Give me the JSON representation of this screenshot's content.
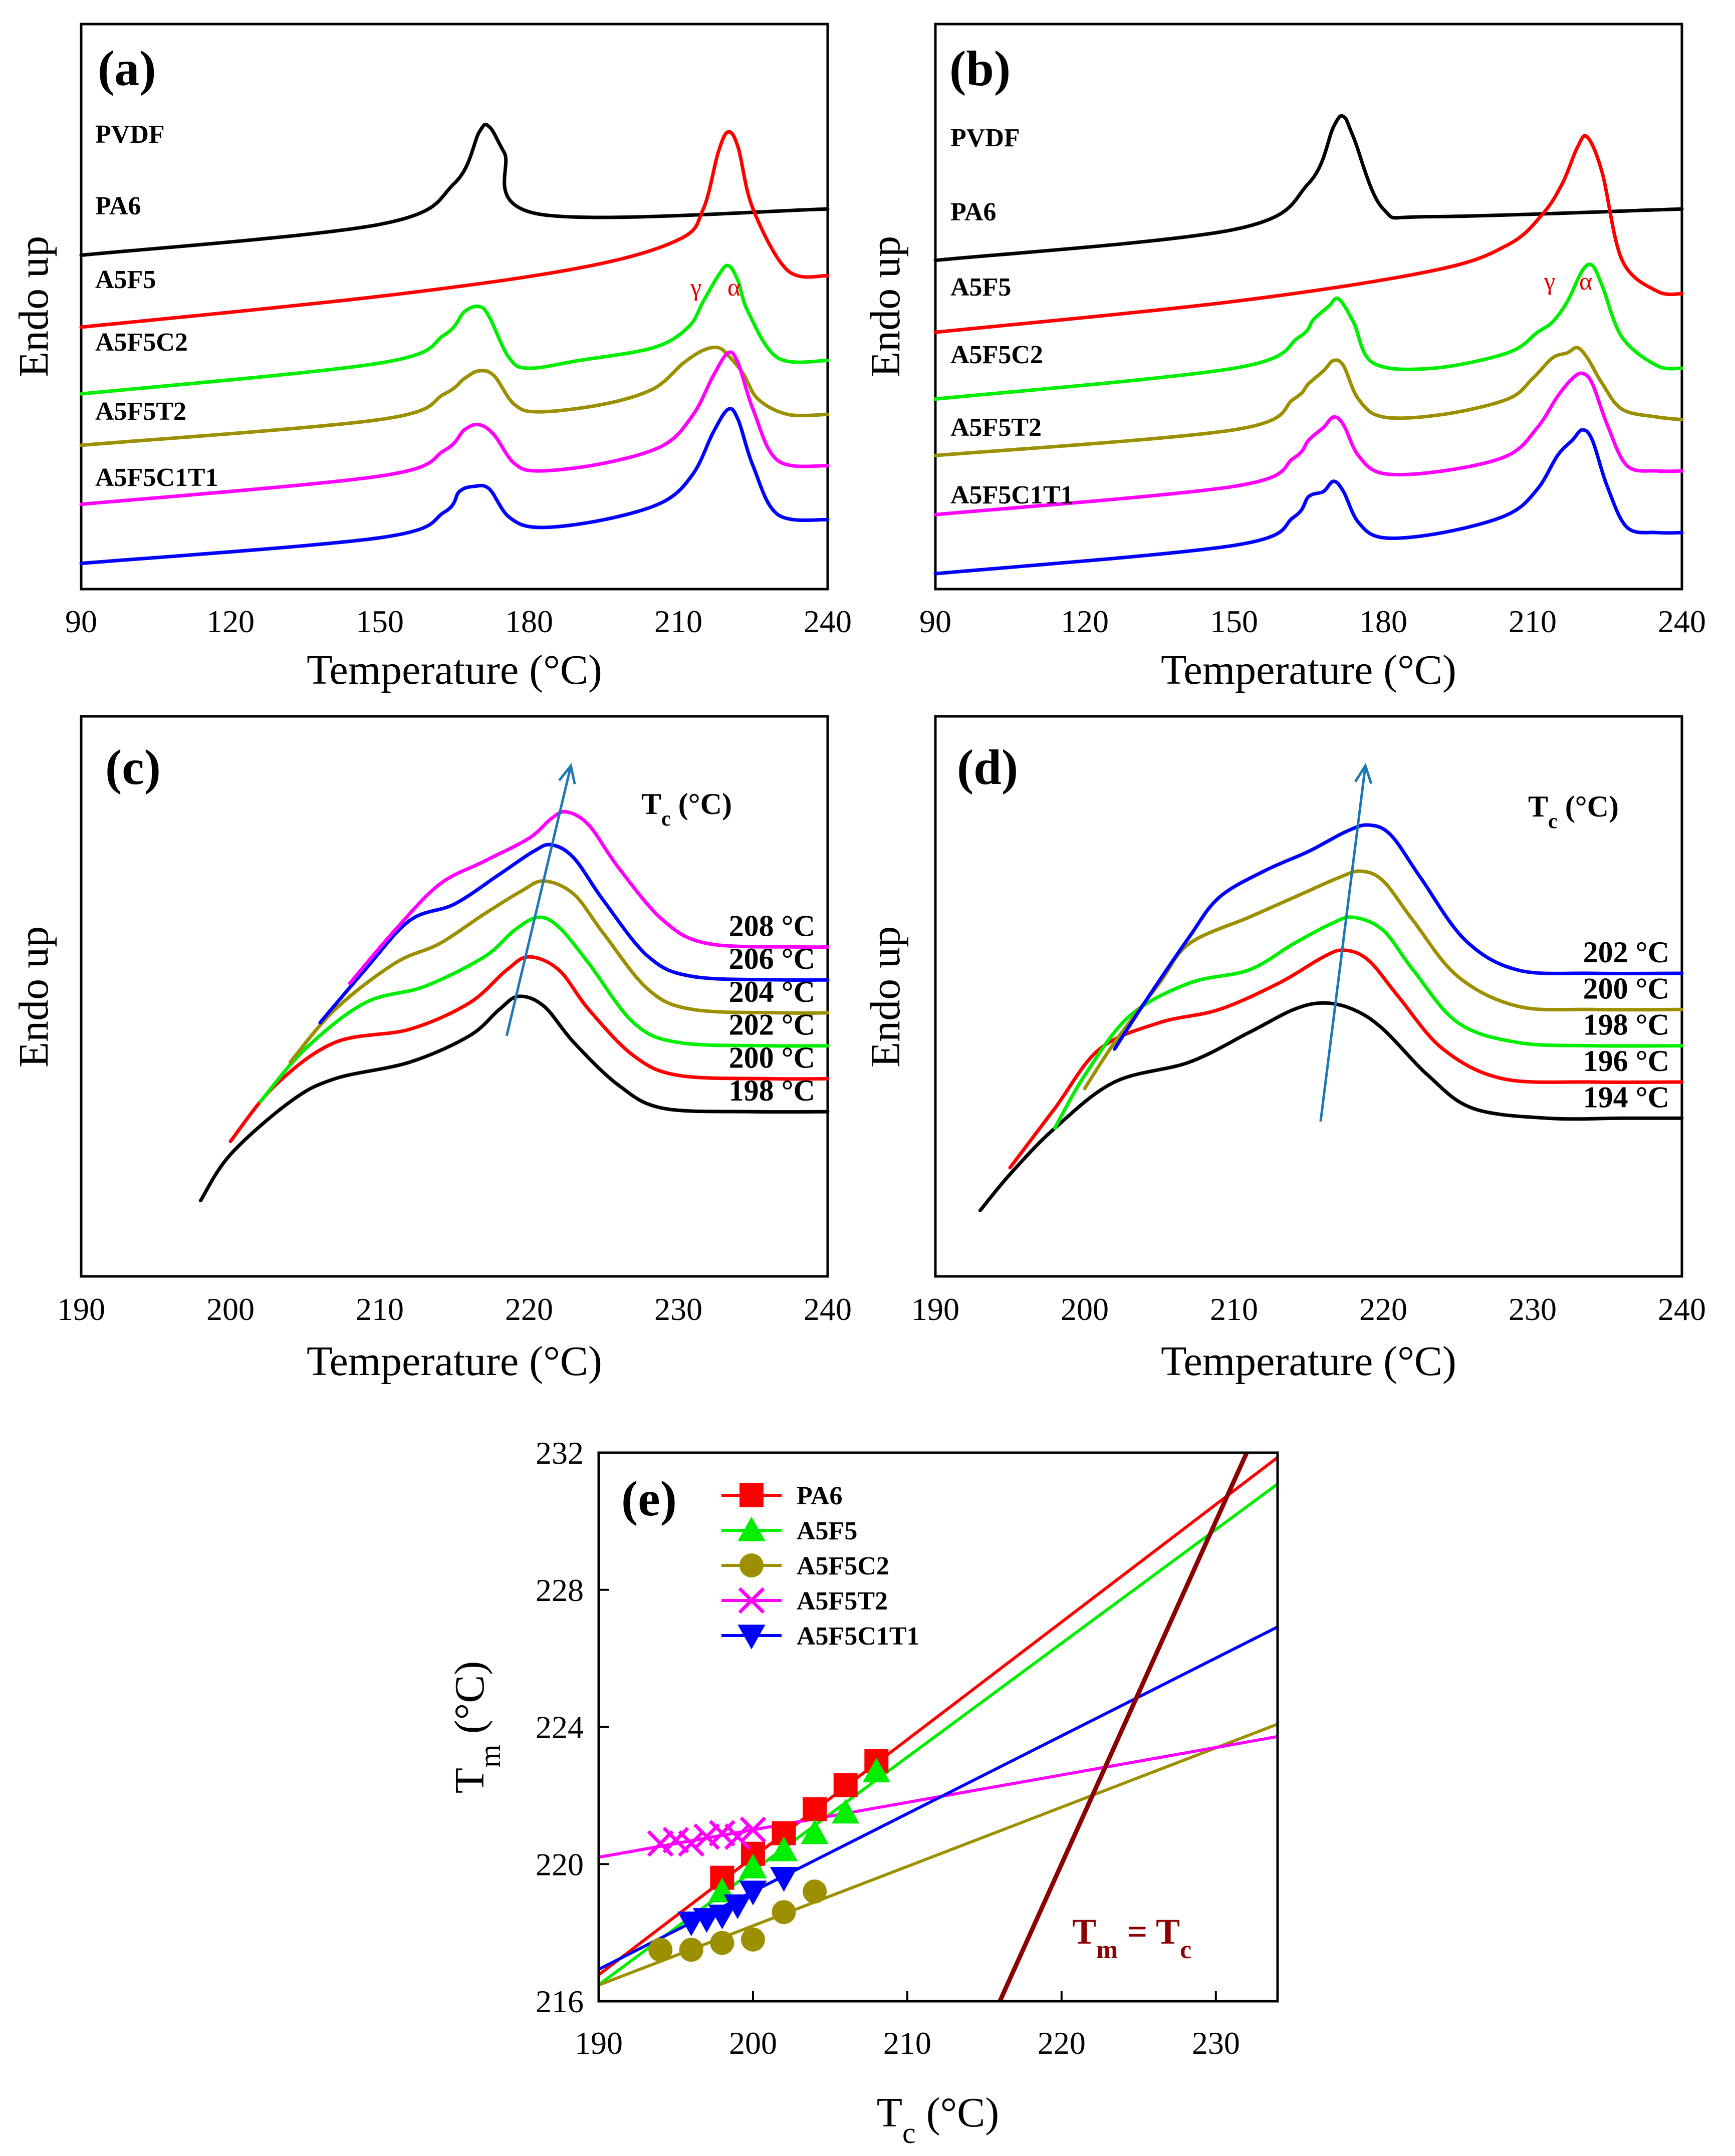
{
  "chart_data": [
    {
      "id": "a",
      "type": "line",
      "panel_label": "(a)",
      "xlabel": "Temperature (°C)",
      "ylabel": "Endo up",
      "xlim": [
        90,
        240
      ],
      "xticks": [
        90,
        120,
        150,
        180,
        210,
        240
      ],
      "series": [
        {
          "name": "PVDF",
          "color": "#000000",
          "x": [
            90,
            150,
            165,
            170,
            172,
            175,
            182,
            240
          ],
          "y": [
            13.0,
            14.2,
            15.8,
            17.8,
            18.0,
            17.0,
            14.6,
            14.8
          ]
        },
        {
          "name": "PA6",
          "color": "#ff0000",
          "x": [
            90,
            150,
            190,
            210,
            215,
            218,
            220,
            222,
            225,
            232,
            240
          ],
          "y": [
            10.2,
            11.4,
            12.5,
            13.6,
            14.8,
            17.0,
            17.8,
            17.2,
            14.8,
            12.4,
            12.2
          ]
        },
        {
          "name": "A5F5",
          "color": "#00ee00",
          "x": [
            90,
            150,
            163,
            167,
            170,
            172,
            176,
            180,
            190,
            205,
            212,
            215,
            218,
            220,
            222,
            224,
            230,
            240
          ],
          "y": [
            7.6,
            8.8,
            9.9,
            10.8,
            11.0,
            10.6,
            9.0,
            8.6,
            8.9,
            9.4,
            10.2,
            11.2,
            12.2,
            12.6,
            12.0,
            10.8,
            9.0,
            8.9
          ]
        },
        {
          "name": "A5F5C2",
          "color": "#9c9000",
          "x": [
            90,
            150,
            163,
            167,
            170,
            173,
            177,
            182,
            195,
            205,
            211,
            215,
            218,
            220,
            223,
            226,
            232,
            240
          ],
          "y": [
            5.6,
            6.6,
            7.6,
            8.2,
            8.5,
            8.3,
            7.2,
            6.9,
            7.2,
            7.8,
            8.8,
            9.3,
            9.4,
            9.1,
            8.4,
            7.4,
            6.8,
            6.8
          ]
        },
        {
          "name": "A5F5T2",
          "color": "#ff00ff",
          "x": [
            90,
            150,
            163,
            167,
            170,
            173,
            177,
            182,
            195,
            207,
            213,
            217,
            220,
            222,
            225,
            230,
            240
          ],
          "y": [
            3.3,
            4.4,
            5.4,
            6.2,
            6.4,
            6.0,
            4.9,
            4.6,
            4.9,
            5.6,
            6.8,
            8.3,
            9.2,
            8.8,
            7.0,
            5.0,
            4.8
          ]
        },
        {
          "name": "A5F5C1T1",
          "color": "#0000ff",
          "x": [
            90,
            150,
            163,
            166,
            169,
            172,
            176,
            182,
            195,
            207,
            213,
            217,
            220,
            222,
            225,
            230,
            240
          ],
          "y": [
            1.0,
            2.0,
            3.0,
            3.8,
            4.0,
            3.9,
            2.8,
            2.4,
            2.7,
            3.4,
            4.5,
            6.1,
            7.0,
            6.6,
            4.8,
            2.9,
            2.7
          ]
        }
      ],
      "annotations": [
        "γ",
        "α"
      ]
    },
    {
      "id": "b",
      "type": "line",
      "panel_label": "(b)",
      "xlabel": "Temperature (°C)",
      "ylabel": "Endo up",
      "xlim": [
        90,
        240
      ],
      "xticks": [
        90,
        120,
        150,
        180,
        210,
        240
      ],
      "series": [
        {
          "name": "PVDF",
          "color": "#000000",
          "x": [
            90,
            150,
            165,
            170,
            172,
            174,
            180,
            190,
            240
          ],
          "y": [
            12.8,
            14.0,
            15.8,
            18.0,
            18.4,
            17.6,
            14.8,
            14.5,
            14.8
          ]
        },
        {
          "name": "PA6",
          "color": "#ff0000",
          "x": [
            90,
            150,
            190,
            205,
            212,
            216,
            219,
            221,
            224,
            228,
            235,
            240
          ],
          "y": [
            10.0,
            11.2,
            12.4,
            13.4,
            14.6,
            15.8,
            17.2,
            17.6,
            16.2,
            12.8,
            11.6,
            11.5
          ]
        },
        {
          "name": "A5F5",
          "color": "#00ee00",
          "x": [
            90,
            150,
            163,
            166,
            169,
            171,
            174,
            178,
            190,
            205,
            211,
            214,
            217,
            220,
            222,
            224,
            228,
            235,
            240
          ],
          "y": [
            7.4,
            8.6,
            9.8,
            10.5,
            11.0,
            11.3,
            10.4,
            8.8,
            8.6,
            9.2,
            10.0,
            10.4,
            11.2,
            12.4,
            12.6,
            11.8,
            9.8,
            8.7,
            8.6
          ]
        },
        {
          "name": "A5F5C2",
          "color": "#9c9000",
          "x": [
            90,
            150,
            162,
            165,
            168,
            170,
            172,
            175,
            180,
            192,
            205,
            210,
            214,
            217,
            219,
            221,
            224,
            228,
            235,
            240
          ],
          "y": [
            5.2,
            6.2,
            7.4,
            8.0,
            8.5,
            8.9,
            8.7,
            7.4,
            6.7,
            6.8,
            7.4,
            8.2,
            9.0,
            9.2,
            9.4,
            9.0,
            8.0,
            7.0,
            6.7,
            6.6
          ]
        },
        {
          "name": "A5F5T2",
          "color": "#ff00ff",
          "x": [
            90,
            150,
            162,
            165,
            168,
            170,
            172,
            175,
            180,
            192,
            205,
            211,
            215,
            218,
            220,
            222,
            225,
            229,
            235,
            240
          ],
          "y": [
            2.9,
            4.0,
            5.1,
            5.8,
            6.3,
            6.7,
            6.4,
            5.2,
            4.5,
            4.6,
            5.2,
            6.3,
            7.5,
            8.2,
            8.4,
            8.0,
            6.4,
            4.8,
            4.6,
            4.6
          ]
        },
        {
          "name": "A5F5C1T1",
          "color": "#0000ff",
          "x": [
            90,
            150,
            162,
            165,
            168,
            170,
            172,
            175,
            180,
            192,
            205,
            211,
            215,
            218,
            220,
            222,
            225,
            229,
            235,
            240
          ],
          "y": [
            0.6,
            1.7,
            2.8,
            3.6,
            3.8,
            4.2,
            3.8,
            2.6,
            2.0,
            2.2,
            2.9,
            3.9,
            5.2,
            5.8,
            6.2,
            5.8,
            4.0,
            2.4,
            2.2,
            2.2
          ]
        }
      ],
      "annotations": [
        "γ",
        "α"
      ]
    },
    {
      "id": "c",
      "type": "line",
      "panel_label": "(c)",
      "xlabel": "Temperature (°C)",
      "ylabel": "Endo up",
      "xlim": [
        190,
        240
      ],
      "xticks": [
        190,
        200,
        210,
        220,
        230,
        240
      ],
      "legend_title": "T",
      "legend_title_sub": "c",
      "legend_title_unit": " (°C)",
      "series": [
        {
          "name": "198 °C",
          "color": "#000000",
          "x": [
            198,
            200,
            204,
            207,
            212,
            216,
            218,
            219.3,
            221,
            223,
            226,
            229,
            235,
            240
          ],
          "y": [
            0.8,
            2.2,
            3.8,
            4.5,
            5.0,
            5.8,
            6.6,
            7.0,
            6.7,
            5.6,
            4.3,
            3.6,
            3.5,
            3.5
          ]
        },
        {
          "name": "200 °C",
          "color": "#ff0000",
          "x": [
            200,
            203,
            207,
            212,
            216,
            218.5,
            220,
            222,
            224,
            227,
            230,
            236,
            240
          ],
          "y": [
            2.6,
            4.3,
            5.6,
            6.0,
            6.8,
            7.8,
            8.2,
            7.8,
            6.6,
            5.2,
            4.6,
            4.5,
            4.5
          ]
        },
        {
          "name": "202 °C",
          "color": "#00ee00",
          "x": [
            202,
            205,
            209,
            213,
            217,
            219,
            220.6,
            222,
            224,
            227,
            230,
            236,
            240
          ],
          "y": [
            3.8,
            5.4,
            6.8,
            7.3,
            8.2,
            9.0,
            9.4,
            9.1,
            8.0,
            6.2,
            5.6,
            5.5,
            5.5
          ]
        },
        {
          "name": "204 °C",
          "color": "#9c9000",
          "x": [
            204,
            207,
            211,
            214,
            217,
            219.5,
            221,
            223,
            225,
            228,
            231,
            237,
            240
          ],
          "y": [
            5.0,
            6.6,
            8.0,
            8.6,
            9.5,
            10.2,
            10.5,
            10.1,
            8.9,
            7.2,
            6.6,
            6.5,
            6.5
          ]
        },
        {
          "name": "206 °C",
          "color": "#0000ff",
          "x": [
            206,
            209,
            212,
            215,
            218,
            220.3,
            221.5,
            223,
            225,
            228,
            231,
            237,
            240
          ],
          "y": [
            6.2,
            7.8,
            9.3,
            9.8,
            10.7,
            11.4,
            11.6,
            11.2,
            9.9,
            8.2,
            7.6,
            7.5,
            7.5
          ]
        },
        {
          "name": "208 °C",
          "color": "#ff00ff",
          "x": [
            208,
            211,
            214,
            217,
            220,
            221.5,
            222.5,
            224,
            226,
            229,
            232,
            238,
            240
          ],
          "y": [
            7.4,
            9.0,
            10.4,
            11.1,
            11.8,
            12.4,
            12.6,
            12.2,
            10.9,
            9.3,
            8.6,
            8.5,
            8.5
          ]
        }
      ],
      "arrow": {
        "from": [
          218.5,
          5.8
        ],
        "to": [
          222.8,
          14.0
        ]
      }
    },
    {
      "id": "d",
      "type": "line",
      "panel_label": "(d)",
      "xlabel": "Temperature (°C)",
      "ylabel": "Endo up",
      "xlim": [
        190,
        240
      ],
      "xticks": [
        190,
        200,
        210,
        220,
        230,
        240
      ],
      "legend_title": "T",
      "legend_title_sub": "c",
      "legend_title_unit": " (°C)",
      "series": [
        {
          "name": "194 °C",
          "color": "#000000",
          "x": [
            193,
            195,
            198,
            202,
            207,
            211,
            214,
            216,
            218,
            220,
            223,
            226,
            231,
            236,
            240
          ],
          "y": [
            0.5,
            1.6,
            3.0,
            4.4,
            5.0,
            5.9,
            6.6,
            6.8,
            6.6,
            6.0,
            4.6,
            3.6,
            3.3,
            3.3,
            3.3
          ]
        },
        {
          "name": "196 °C",
          "color": "#ff0000",
          "x": [
            195,
            198,
            201,
            205,
            209,
            213,
            216,
            217.4,
            219,
            221,
            224,
            228,
            234,
            240
          ],
          "y": [
            1.8,
            3.6,
            5.4,
            6.2,
            6.6,
            7.4,
            8.2,
            8.4,
            8.1,
            7.0,
            5.4,
            4.5,
            4.4,
            4.4
          ]
        },
        {
          "name": "198 °C",
          "color": "#00ee00",
          "x": [
            198,
            200,
            203,
            207,
            211,
            214,
            216.5,
            218,
            220,
            222,
            225,
            229,
            234,
            240
          ],
          "y": [
            3.0,
            4.6,
            6.4,
            7.4,
            7.8,
            8.6,
            9.2,
            9.4,
            9.0,
            7.8,
            6.2,
            5.6,
            5.5,
            5.5
          ]
        },
        {
          "name": "200 °C",
          "color": "#9c9000",
          "x": [
            200,
            202,
            205,
            207,
            211,
            214,
            217,
            218.5,
            220,
            222,
            225,
            229,
            234,
            240
          ],
          "y": [
            4.2,
            5.6,
            7.4,
            8.6,
            9.4,
            10.0,
            10.6,
            10.8,
            10.5,
            9.3,
            7.6,
            6.7,
            6.6,
            6.6
          ]
        },
        {
          "name": "202 °C",
          "color": "#0000ff",
          "x": [
            202,
            204,
            207,
            209,
            212,
            215,
            217.5,
            219,
            220.5,
            222.5,
            225.5,
            229,
            234,
            240
          ],
          "y": [
            5.4,
            6.8,
            8.8,
            10.0,
            10.8,
            11.4,
            12.0,
            12.2,
            11.9,
            10.6,
            8.7,
            7.8,
            7.7,
            7.7
          ]
        }
      ],
      "arrow": {
        "from": [
          215.8,
          3.2
        ],
        "to": [
          218.8,
          14.0
        ]
      }
    },
    {
      "id": "e",
      "type": "scatter",
      "panel_label": "(e)",
      "xlabel": "T",
      "xlabel_sub": "c",
      "xlabel_unit": " (°C)",
      "ylabel": "T",
      "ylabel_sub": "m",
      "ylabel_unit": " (°C)",
      "xlim": [
        190,
        234
      ],
      "ylim": [
        216,
        232
      ],
      "xticks": [
        190,
        200,
        210,
        220,
        230
      ],
      "yticks": [
        216,
        220,
        224,
        228,
        232
      ],
      "series": [
        {
          "name": "PA6",
          "color": "#ff0000",
          "marker": "square",
          "x": [
            198,
            200,
            202,
            204,
            206,
            208
          ],
          "y": [
            219.6,
            220.3,
            220.9,
            221.6,
            222.3,
            223.0
          ],
          "fit": {
            "slope": 0.343,
            "intercept": 151.6
          }
        },
        {
          "name": "A5F5",
          "color": "#00ee00",
          "marker": "triangle-up",
          "x": [
            198,
            200,
            202,
            204,
            206,
            208
          ],
          "y": [
            219.2,
            219.9,
            220.4,
            220.9,
            221.5,
            222.7
          ],
          "fit": {
            "slope": 0.332,
            "intercept": 153.4
          }
        },
        {
          "name": "A5F5C2",
          "color": "#9c9000",
          "marker": "circle",
          "x": [
            194,
            196,
            198,
            200,
            202,
            204
          ],
          "y": [
            217.5,
            217.5,
            217.7,
            217.8,
            218.6,
            219.2
          ],
          "fit": {
            "slope": 0.173,
            "intercept": 183.6
          }
        },
        {
          "name": "A5F5T2",
          "color": "#ff00ff",
          "marker": "x",
          "x": [
            194,
            195,
            196,
            197,
            198,
            199,
            200
          ],
          "y": [
            220.6,
            220.7,
            220.6,
            220.8,
            220.9,
            220.8,
            221.0
          ],
          "fit": {
            "slope": 0.08,
            "intercept": 205.0
          }
        },
        {
          "name": "A5F5C1T1",
          "color": "#0000ff",
          "marker": "triangle-down",
          "x": [
            196,
            197,
            198,
            199,
            200,
            202
          ],
          "y": [
            218.3,
            218.4,
            218.5,
            218.8,
            219.2,
            219.6
          ],
          "fit": {
            "slope": 0.227,
            "intercept": 173.8
          }
        }
      ],
      "reference_line": {
        "label_main": "T",
        "label_sub1": "m",
        "label_mid": " = T",
        "label_sub2": "c",
        "x": [
          216,
          234
        ],
        "y": [
          216,
          234
        ],
        "color": "#8b0000"
      }
    }
  ]
}
